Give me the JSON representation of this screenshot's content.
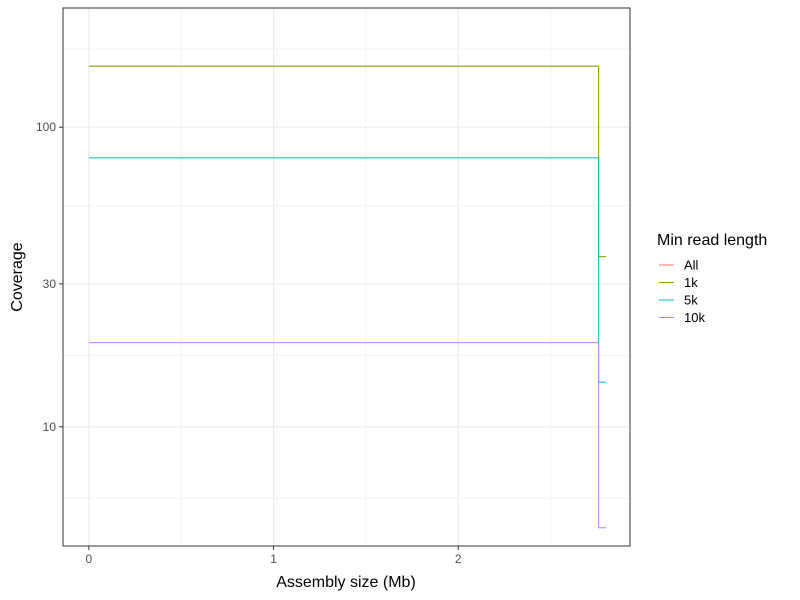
{
  "chart_data": {
    "type": "line",
    "title": "",
    "xlabel": "Assembly size (Mb)",
    "ylabel": "Coverage",
    "xlim": [
      -0.14,
      2.93
    ],
    "ylim": [
      4.0,
      250
    ],
    "yscale": "log10",
    "x_ticks": [
      0,
      1,
      2
    ],
    "x_tick_labels": [
      "0",
      "1",
      "2"
    ],
    "y_ticks": [
      10,
      30,
      100
    ],
    "y_tick_labels": [
      "10",
      "30",
      "100"
    ],
    "grid": true,
    "legend": {
      "title": "Min read length",
      "position": "right"
    },
    "series": [
      {
        "name": "All",
        "color": "#F8766D",
        "x": [
          0,
          2.76,
          2.76,
          2.8
        ],
        "y": [
          160,
          160,
          37,
          37
        ]
      },
      {
        "name": "1k",
        "color": "#7CAE00",
        "x": [
          0,
          2.76,
          2.76,
          2.8
        ],
        "y": [
          160,
          160,
          37,
          37
        ]
      },
      {
        "name": "5k",
        "color": "#00BFC4",
        "x": [
          0,
          2.76,
          2.76,
          2.8
        ],
        "y": [
          79,
          79,
          14.1,
          14.1
        ]
      },
      {
        "name": "10k",
        "color": "#C77CFF",
        "x": [
          0,
          2.76,
          2.76,
          2.8
        ],
        "y": [
          19.1,
          19.1,
          4.6,
          4.6
        ]
      }
    ]
  }
}
